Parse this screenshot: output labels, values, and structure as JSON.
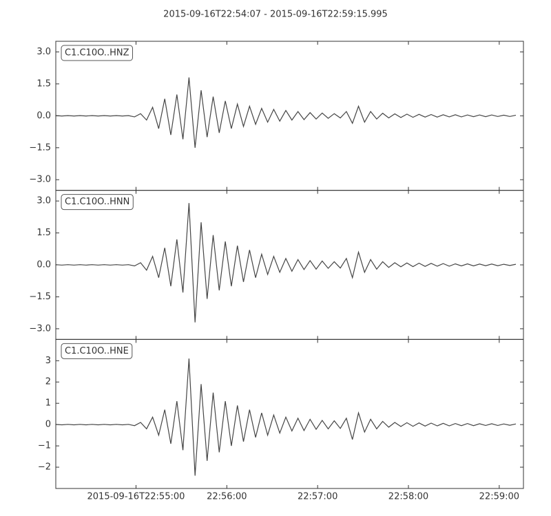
{
  "chart_data": {
    "type": "line",
    "title": "2015-09-16T22:54:07  -  2015-09-16T22:59:15.995",
    "xlim": [
      "2015-09-16T22:54:07",
      "2015-09-16T22:59:15.995"
    ],
    "xticks": [
      "2015-09-16T22:55:00",
      {
        "value": "2015-09-16T22:56:00",
        "label": "22:56:00"
      },
      {
        "value": "2015-09-16T22:57:00",
        "label": "22:57:00"
      },
      {
        "value": "2015-09-16T22:58:00",
        "label": "22:58:00"
      },
      {
        "value": "2015-09-16T22:59:00",
        "label": "22:59:00"
      }
    ],
    "x": [
      "2015-09-16T22:54:07",
      "2015-09-16T22:54:11",
      "2015-09-16T22:54:15",
      "2015-09-16T22:54:19",
      "2015-09-16T22:54:23",
      "2015-09-16T22:54:27",
      "2015-09-16T22:54:31",
      "2015-09-16T22:54:35",
      "2015-09-16T22:54:39",
      "2015-09-16T22:54:43",
      "2015-09-16T22:54:47",
      "2015-09-16T22:54:51",
      "2015-09-16T22:54:55",
      "2015-09-16T22:54:59",
      "2015-09-16T22:55:03",
      "2015-09-16T22:55:07",
      "2015-09-16T22:55:11",
      "2015-09-16T22:55:15",
      "2015-09-16T22:55:19",
      "2015-09-16T22:55:23",
      "2015-09-16T22:55:27",
      "2015-09-16T22:55:31",
      "2015-09-16T22:55:35",
      "2015-09-16T22:55:39",
      "2015-09-16T22:55:43",
      "2015-09-16T22:55:47",
      "2015-09-16T22:55:51",
      "2015-09-16T22:55:55",
      "2015-09-16T22:55:59",
      "2015-09-16T22:56:03",
      "2015-09-16T22:56:07",
      "2015-09-16T22:56:11",
      "2015-09-16T22:56:15",
      "2015-09-16T22:56:19",
      "2015-09-16T22:56:23",
      "2015-09-16T22:56:27",
      "2015-09-16T22:56:31",
      "2015-09-16T22:56:35",
      "2015-09-16T22:56:39",
      "2015-09-16T22:56:43",
      "2015-09-16T22:56:47",
      "2015-09-16T22:56:51",
      "2015-09-16T22:56:55",
      "2015-09-16T22:56:59",
      "2015-09-16T22:57:03",
      "2015-09-16T22:57:07",
      "2015-09-16T22:57:11",
      "2015-09-16T22:57:15",
      "2015-09-16T22:57:19",
      "2015-09-16T22:57:23",
      "2015-09-16T22:57:27",
      "2015-09-16T22:57:31",
      "2015-09-16T22:57:35",
      "2015-09-16T22:57:39",
      "2015-09-16T22:57:43",
      "2015-09-16T22:57:47",
      "2015-09-16T22:57:51",
      "2015-09-16T22:57:55",
      "2015-09-16T22:57:59",
      "2015-09-16T22:58:03",
      "2015-09-16T22:58:07",
      "2015-09-16T22:58:11",
      "2015-09-16T22:58:15",
      "2015-09-16T22:58:19",
      "2015-09-16T22:58:23",
      "2015-09-16T22:58:27",
      "2015-09-16T22:58:31",
      "2015-09-16T22:58:35",
      "2015-09-16T22:58:39",
      "2015-09-16T22:58:43",
      "2015-09-16T22:58:47",
      "2015-09-16T22:58:51",
      "2015-09-16T22:58:55",
      "2015-09-16T22:58:59",
      "2015-09-16T22:59:03",
      "2015-09-16T22:59:07",
      "2015-09-16T22:59:11"
    ],
    "series": [
      {
        "name": "C1.C10O..HNZ",
        "color": "#444444",
        "ylim": [
          -3.5,
          3.5
        ],
        "yticks": [
          {
            "value": -3.0,
            "label": "−3.0"
          },
          {
            "value": -1.5,
            "label": "−1.5"
          },
          {
            "value": 0.0,
            "label": "0.0"
          },
          {
            "value": 1.5,
            "label": "1.5"
          },
          {
            "value": 3.0,
            "label": "3.0"
          }
        ],
        "values": [
          0.01,
          -0.01,
          0.01,
          -0.01,
          0.01,
          -0.01,
          0.01,
          -0.01,
          0.01,
          -0.01,
          0.01,
          -0.01,
          0.01,
          -0.05,
          0.1,
          -0.2,
          0.4,
          -0.6,
          0.8,
          -0.9,
          1.0,
          -1.1,
          1.8,
          -1.5,
          1.2,
          -1.0,
          0.9,
          -0.8,
          0.7,
          -0.6,
          0.55,
          -0.5,
          0.45,
          -0.4,
          0.35,
          -0.3,
          0.3,
          -0.25,
          0.25,
          -0.2,
          0.2,
          -0.18,
          0.15,
          -0.15,
          0.13,
          -0.12,
          0.1,
          -0.1,
          0.2,
          -0.35,
          0.45,
          -0.3,
          0.2,
          -0.15,
          0.12,
          -0.1,
          0.09,
          -0.08,
          0.08,
          -0.07,
          0.07,
          -0.06,
          0.06,
          -0.06,
          0.05,
          -0.05,
          0.05,
          -0.05,
          0.04,
          -0.04,
          0.04,
          -0.04,
          0.04,
          -0.03,
          0.03,
          -0.03,
          0.03
        ]
      },
      {
        "name": "C1.C10O..HNN",
        "color": "#444444",
        "ylim": [
          -3.5,
          3.5
        ],
        "yticks": [
          {
            "value": -3.0,
            "label": "−3.0"
          },
          {
            "value": -1.5,
            "label": "−1.5"
          },
          {
            "value": 0.0,
            "label": "0.0"
          },
          {
            "value": 1.5,
            "label": "1.5"
          },
          {
            "value": 3.0,
            "label": "3.0"
          }
        ],
        "values": [
          0.01,
          -0.01,
          0.01,
          -0.01,
          0.01,
          -0.01,
          0.01,
          -0.01,
          0.01,
          -0.01,
          0.01,
          -0.01,
          0.01,
          -0.05,
          0.1,
          -0.25,
          0.4,
          -0.6,
          0.8,
          -1.0,
          1.2,
          -1.3,
          2.9,
          -2.7,
          2.0,
          -1.6,
          1.4,
          -1.2,
          1.1,
          -1.0,
          0.9,
          -0.8,
          0.7,
          -0.6,
          0.5,
          -0.45,
          0.4,
          -0.35,
          0.3,
          -0.3,
          0.25,
          -0.22,
          0.2,
          -0.2,
          0.18,
          -0.16,
          0.15,
          -0.15,
          0.3,
          -0.6,
          0.6,
          -0.35,
          0.25,
          -0.2,
          0.15,
          -0.12,
          0.1,
          -0.09,
          0.09,
          -0.08,
          0.08,
          -0.07,
          0.07,
          -0.06,
          0.06,
          -0.06,
          0.05,
          -0.05,
          0.05,
          -0.05,
          0.04,
          -0.04,
          0.04,
          -0.04,
          0.03,
          -0.03,
          0.03
        ]
      },
      {
        "name": "C1.C10O..HNE",
        "color": "#444444",
        "ylim": [
          -3.0,
          4.0
        ],
        "yticks": [
          {
            "value": -2,
            "label": "−2"
          },
          {
            "value": -1,
            "label": "−1"
          },
          0,
          1,
          2,
          3
        ],
        "values": [
          0.01,
          -0.01,
          0.01,
          -0.01,
          0.01,
          -0.01,
          0.01,
          -0.01,
          0.01,
          -0.01,
          0.01,
          -0.01,
          0.01,
          -0.05,
          0.1,
          -0.2,
          0.35,
          -0.5,
          0.7,
          -0.9,
          1.1,
          -1.2,
          3.1,
          -2.4,
          1.9,
          -1.7,
          1.5,
          -1.3,
          1.1,
          -1.0,
          0.9,
          -0.8,
          0.7,
          -0.6,
          0.55,
          -0.5,
          0.45,
          -0.4,
          0.35,
          -0.3,
          0.3,
          -0.28,
          0.25,
          -0.22,
          0.2,
          -0.2,
          0.18,
          -0.18,
          0.3,
          -0.7,
          0.55,
          -0.35,
          0.25,
          -0.2,
          0.15,
          -0.12,
          0.1,
          -0.09,
          0.09,
          -0.08,
          0.08,
          -0.07,
          0.07,
          -0.06,
          0.06,
          -0.06,
          0.05,
          -0.05,
          0.05,
          -0.05,
          0.04,
          -0.04,
          0.04,
          -0.04,
          0.03,
          -0.03,
          0.03
        ]
      }
    ]
  }
}
